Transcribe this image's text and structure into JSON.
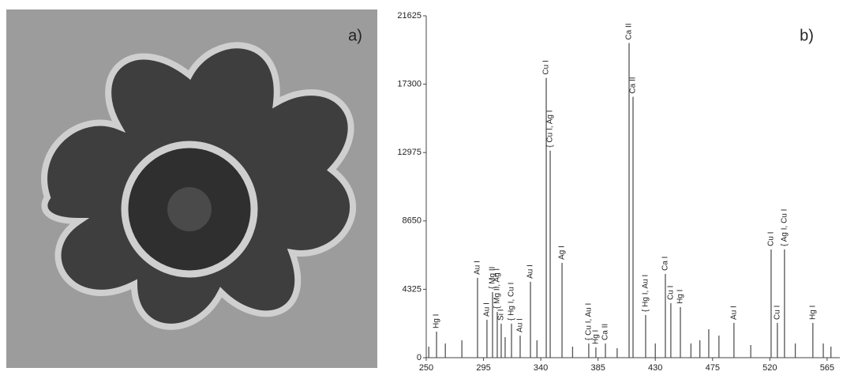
{
  "panel_labels": {
    "a": "a)",
    "b": "b)"
  },
  "chart_data": {
    "type": "stem",
    "color": "#555555",
    "x": [
      252,
      258.1,
      265,
      278,
      290.3,
      297.7,
      302.1,
      305.8,
      308.9,
      312,
      317,
      323.8,
      331.9,
      337,
      344.3,
      347.4,
      356.7,
      365,
      377.7,
      383.3,
      390.8,
      400,
      409.4,
      412.5,
      422.4,
      430,
      437.9,
      442.2,
      449.7,
      458,
      465,
      472,
      480,
      491.8,
      505,
      521,
      525.9,
      531.5,
      540,
      553.8,
      562,
      568
    ],
    "values": [
      700,
      1650,
      900,
      1100,
      5050,
      2400,
      4150,
      2900,
      2150,
      1300,
      2150,
      1400,
      4800,
      1100,
      17700,
      13100,
      6000,
      700,
      900,
      650,
      900,
      600,
      19900,
      16500,
      2700,
      900,
      5300,
      3450,
      3200,
      900,
      1100,
      1800,
      1400,
      2200,
      800,
      6850,
      2200,
      6850,
      900,
      2200,
      900,
      700
    ],
    "peak_labels": [
      null,
      "Hg I",
      null,
      null,
      "Au I",
      "Au I",
      "{ Mg II",
      "{ Mg II, Ag I",
      "Si I",
      null,
      "{ Hg I, Cu I",
      "Au I",
      "Au I",
      null,
      "Cu I",
      "{ Cu I, Ag I",
      "Ag I",
      null,
      "{ Cu I, Au I",
      "Hg I",
      "Ca II",
      null,
      "Ca II",
      "Ca II",
      "{ Hg I, Au I",
      null,
      "Ca I",
      "Cu I",
      "Hg I",
      null,
      null,
      null,
      null,
      "Au I",
      null,
      "Cu I",
      "Cu I",
      "{ Ag I, Cu I",
      null,
      "Hg I",
      null,
      null
    ],
    "xlim": [
      250,
      575
    ],
    "xticks": [
      250,
      295,
      340,
      385,
      430,
      475,
      520,
      565
    ],
    "ylim": [
      0,
      21625
    ],
    "yticks": [
      0,
      4325,
      8650,
      12975,
      17300,
      21625
    ]
  }
}
